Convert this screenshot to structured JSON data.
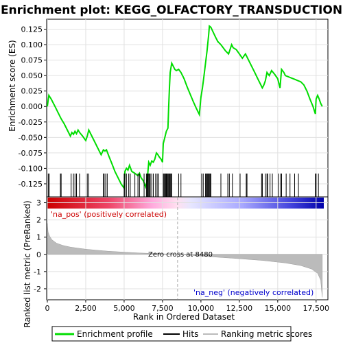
{
  "chart_data": [
    {
      "type": "line",
      "title": "Enrichment plot: KEGG_OLFACTORY_TRANSDUCTION",
      "ylabel": "Enrichment score (ES)",
      "xlim": [
        0,
        18000
      ],
      "ylim": [
        -0.145,
        0.14
      ],
      "yticks": [
        -0.125,
        -0.1,
        -0.075,
        -0.05,
        -0.025,
        0.0,
        0.025,
        0.05,
        0.075,
        0.1,
        0.125
      ],
      "ytick_labels": [
        "-0.125",
        "-0.100",
        "-0.075",
        "-0.050",
        "-0.025",
        "0.000",
        "0.025",
        "0.050",
        "0.075",
        "0.100",
        "0.125"
      ],
      "grid": true,
      "series": [
        {
          "name": "Enrichment profile",
          "color": "#00dd00",
          "x": [
            0,
            100,
            250,
            500,
            700,
            900,
            1100,
            1300,
            1500,
            1600,
            1700,
            1800,
            1900,
            2000,
            2100,
            2300,
            2500,
            2600,
            2700,
            2900,
            3100,
            3300,
            3500,
            3650,
            3750,
            3850,
            4000,
            4200,
            4400,
            4600,
            4800,
            5000,
            5050,
            5150,
            5250,
            5350,
            5500,
            5700,
            5900,
            6000,
            6100,
            6250,
            6400,
            6500,
            6600,
            6700,
            6800,
            6900,
            7000,
            7100,
            7200,
            7300,
            7400,
            7500,
            7550,
            7650,
            7750,
            7850,
            7900,
            7950,
            8000,
            8100,
            8200,
            8300,
            8400,
            8550,
            8700,
            8900,
            9100,
            9300,
            9500,
            9700,
            9900,
            10000,
            10100,
            10200,
            10300,
            10400,
            10500,
            10550,
            10650,
            10800,
            10950,
            11100,
            11300,
            11450,
            11600,
            11800,
            12000,
            12100,
            12300,
            12500,
            12700,
            12900,
            13100,
            13300,
            13500,
            13700,
            13900,
            14000,
            14100,
            14200,
            14300,
            14450,
            14600,
            14800,
            15000,
            15150,
            15250,
            15400,
            15500,
            15700,
            15900,
            16100,
            16300,
            16500,
            16700,
            16900,
            17100,
            17300,
            17450,
            17500,
            17600,
            17700,
            17800,
            17900
          ],
          "y": [
            0.0,
            0.018,
            0.012,
            0.0,
            -0.01,
            -0.02,
            -0.028,
            -0.038,
            -0.048,
            -0.042,
            -0.045,
            -0.04,
            -0.044,
            -0.038,
            -0.042,
            -0.048,
            -0.055,
            -0.048,
            -0.038,
            -0.048,
            -0.058,
            -0.068,
            -0.078,
            -0.07,
            -0.072,
            -0.07,
            -0.08,
            -0.092,
            -0.105,
            -0.115,
            -0.125,
            -0.132,
            -0.105,
            -0.1,
            -0.103,
            -0.095,
            -0.105,
            -0.108,
            -0.112,
            -0.108,
            -0.115,
            -0.12,
            -0.13,
            -0.12,
            -0.09,
            -0.095,
            -0.088,
            -0.09,
            -0.085,
            -0.075,
            -0.078,
            -0.082,
            -0.085,
            -0.09,
            -0.06,
            -0.05,
            -0.04,
            -0.035,
            0.0,
            0.03,
            0.055,
            0.07,
            0.065,
            0.06,
            0.058,
            0.06,
            0.055,
            0.045,
            0.032,
            0.02,
            0.008,
            -0.003,
            -0.013,
            0.015,
            0.03,
            0.05,
            0.07,
            0.09,
            0.115,
            0.13,
            0.128,
            0.12,
            0.112,
            0.105,
            0.1,
            0.095,
            0.09,
            0.085,
            0.1,
            0.095,
            0.092,
            0.085,
            0.078,
            0.085,
            0.075,
            0.065,
            0.055,
            0.045,
            0.035,
            0.03,
            0.035,
            0.042,
            0.055,
            0.05,
            0.058,
            0.052,
            0.045,
            0.03,
            0.06,
            0.055,
            0.05,
            0.048,
            0.046,
            0.044,
            0.042,
            0.04,
            0.035,
            0.025,
            0.012,
            0.0,
            -0.012,
            0.012,
            0.018,
            0.012,
            0.005,
            0.0
          ]
        }
      ]
    },
    {
      "type": "hits",
      "series_name": "Hits",
      "xlim": [
        0,
        18000
      ],
      "hits": [
        60,
        120,
        850,
        900,
        1550,
        1700,
        1800,
        1900,
        2100,
        2600,
        2700,
        3650,
        3700,
        3800,
        3900,
        5000,
        5050,
        5150,
        5300,
        5400,
        5700,
        5900,
        6000,
        6300,
        6450,
        6500,
        6550,
        6600,
        6650,
        6700,
        6800,
        6900,
        7050,
        7150,
        7250,
        7550,
        7600,
        7650,
        7700,
        7750,
        7800,
        7850,
        7900,
        7950,
        8000,
        8050,
        8100,
        8550,
        8700,
        10050,
        10150,
        10300,
        10350,
        10400,
        10450,
        10500,
        10550,
        10600,
        10650,
        11300,
        11750,
        11850,
        12050,
        12550,
        12950,
        13000,
        13950,
        14000,
        14200,
        14300,
        14350,
        14500,
        14650,
        15050,
        15200,
        15250,
        15550,
        15800,
        16100,
        16350,
        17450,
        17500,
        17650
      ]
    },
    {
      "type": "area",
      "ylabel": "Ranked list metric (PreRanked)",
      "xlabel": "Rank in Ordered Dataset",
      "xlim": [
        0,
        18000
      ],
      "ylim": [
        -2.6,
        3.3
      ],
      "yticks": [
        -2,
        -1,
        0,
        1,
        2,
        3
      ],
      "ytick_labels": [
        "-2",
        "-1",
        "0",
        "1",
        "2",
        "3"
      ],
      "xticks": [
        0,
        2500,
        5000,
        7500,
        10000,
        12500,
        15000,
        17500
      ],
      "xtick_labels": [
        "0",
        "2,500",
        "5,000",
        "7,500",
        "10,000",
        "12,500",
        "15,000",
        "17,500"
      ],
      "zero_cross": 8480,
      "zero_cross_label": "Zero cross at 8480",
      "pos_label": "'na_pos' (positively correlated)",
      "neg_label": "'na_neg' (negatively correlated)",
      "x": [
        0,
        50,
        150,
        300,
        600,
        1000,
        1500,
        2500,
        4000,
        6000,
        8480,
        10000,
        12000,
        14000,
        15500,
        16500,
        17200,
        17600,
        17800,
        17850,
        17900
      ],
      "y": [
        1.8,
        1.3,
        1.05,
        0.85,
        0.65,
        0.52,
        0.42,
        0.3,
        0.18,
        0.08,
        0.0,
        -0.1,
        -0.22,
        -0.35,
        -0.5,
        -0.65,
        -0.85,
        -1.1,
        -1.5,
        -2.0,
        -2.5
      ]
    }
  ],
  "legend": {
    "items": [
      {
        "label": "Enrichment profile",
        "color": "#00dd00"
      },
      {
        "label": "Hits",
        "color": "#000000"
      },
      {
        "label": "Ranking metric scores",
        "color": "#bbbbbb"
      }
    ]
  }
}
